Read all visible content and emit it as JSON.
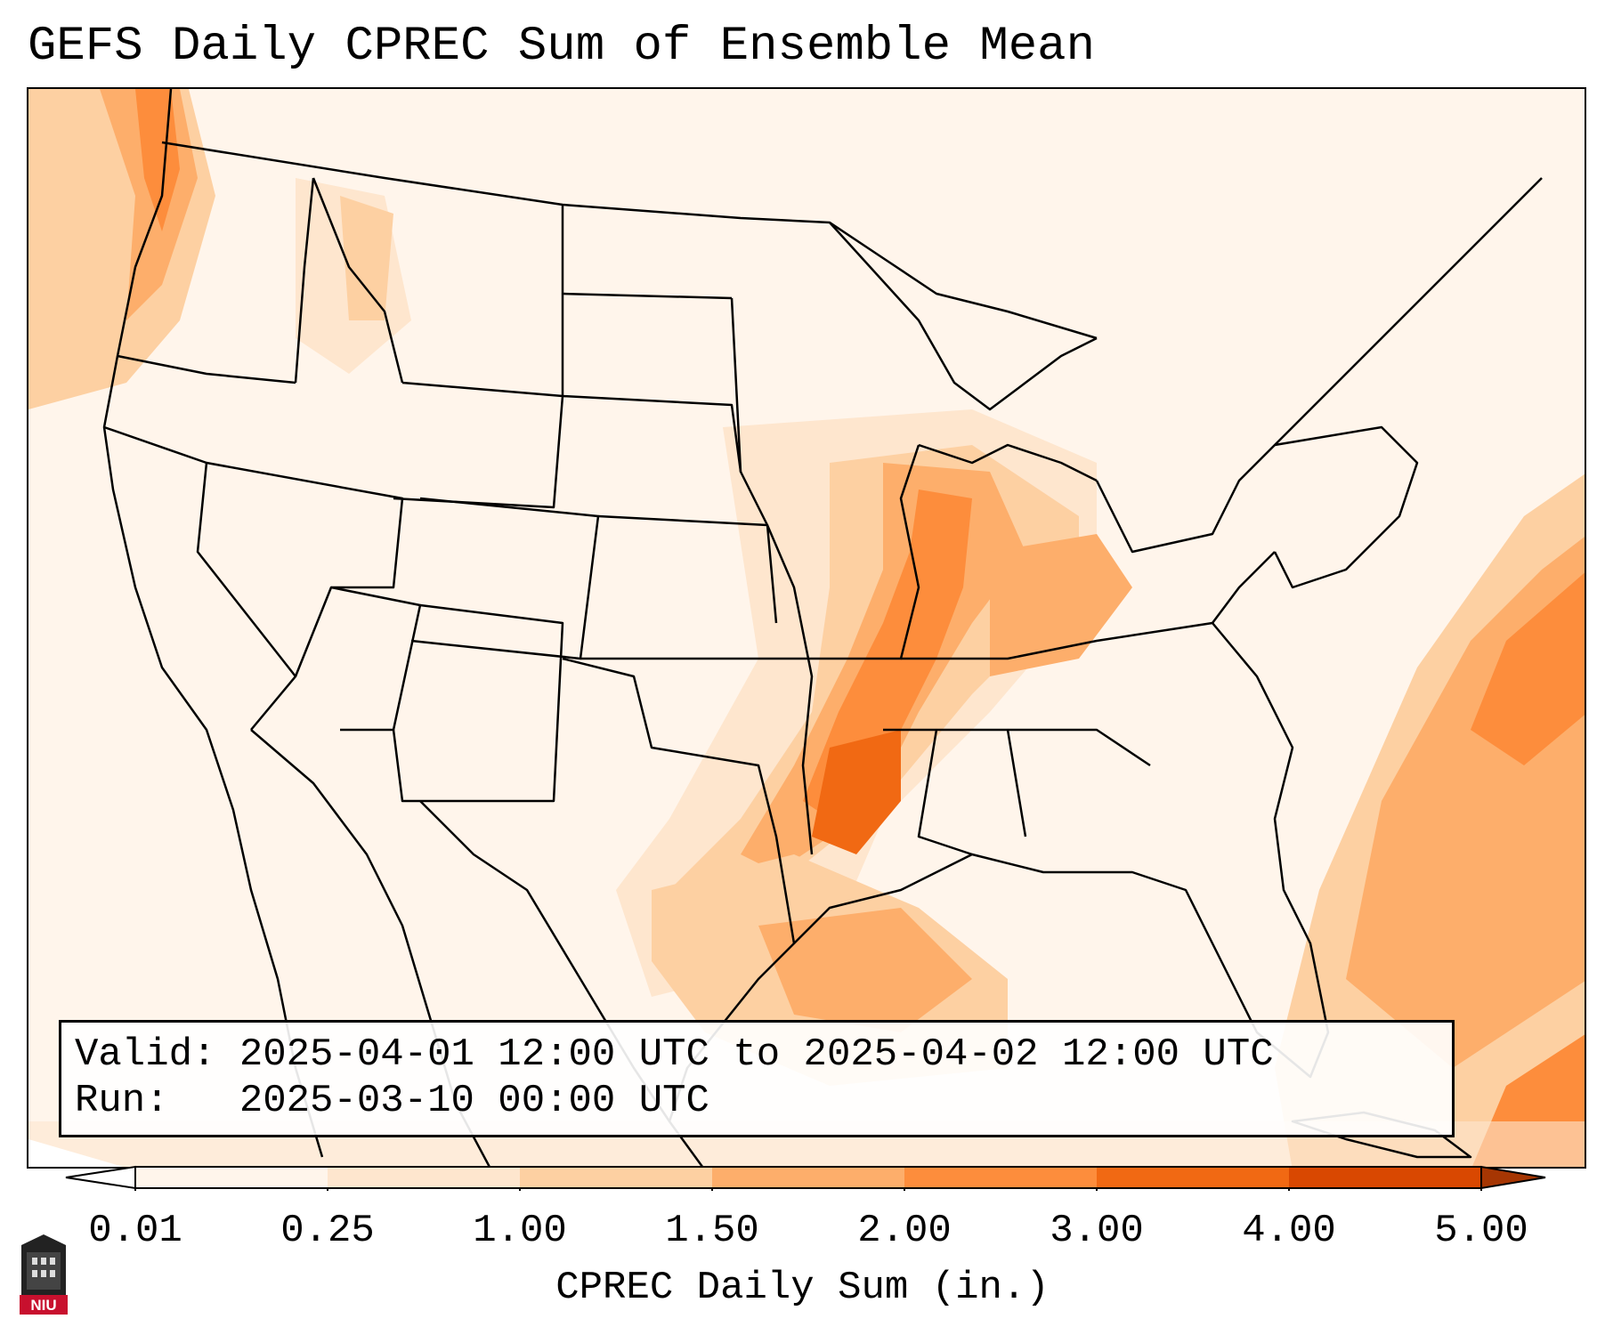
{
  "title": "GEFS Daily CPREC Sum of Ensemble Mean",
  "info": {
    "valid_label": "Valid:",
    "valid_value": "2025-04-01 12:00 UTC to 2025-04-02 12:00 UTC",
    "run_label": "Run:",
    "run_value": "2025-03-10 00:00 UTC"
  },
  "colorbar": {
    "label": "CPREC Daily Sum (in.)",
    "ticks": [
      "0.01",
      "0.25",
      "1.00",
      "1.50",
      "2.00",
      "3.00",
      "4.00",
      "5.00"
    ],
    "colors": [
      "#fff5eb",
      "#fee6ce",
      "#fdd0a2",
      "#fdae6b",
      "#fd8d3c",
      "#f16913",
      "#d94801",
      "#a63603"
    ],
    "under_color": "#ffffff",
    "over_color": "#a63603"
  },
  "map": {
    "projection": "Lambert Conformal (CONUS)",
    "background_color": "#fff5eb",
    "borders_color": "#000000"
  },
  "logo": {
    "text": "NIU",
    "icon": "niu-logo-icon"
  }
}
